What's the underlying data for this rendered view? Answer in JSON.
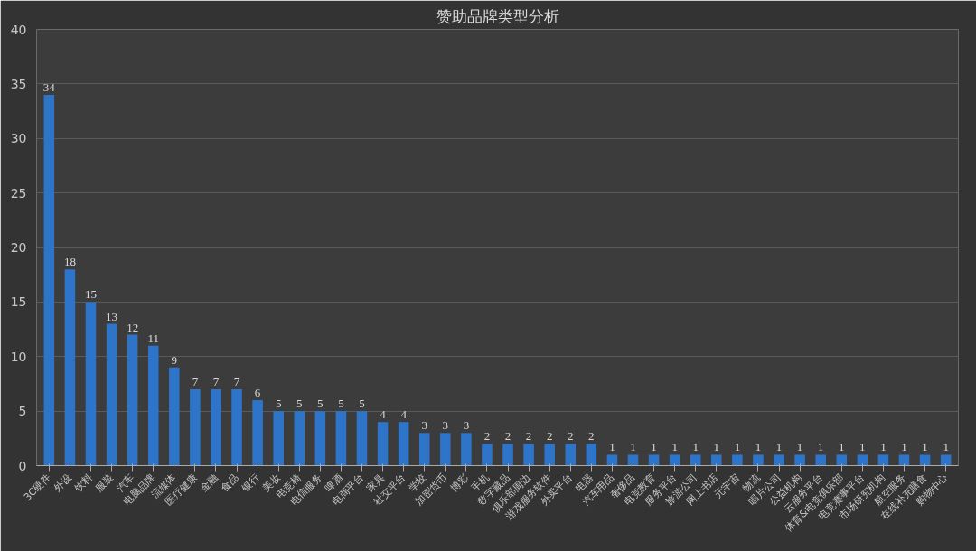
{
  "chart_data": {
    "type": "bar",
    "title": "赞助品牌类型分析",
    "categories": [
      "3C硬件",
      "外设",
      "饮料",
      "服装",
      "汽车",
      "电脑品牌",
      "流媒体",
      "医疗健康",
      "金融",
      "食品",
      "银行",
      "美妆",
      "电竞椅",
      "电信服务",
      "啤酒",
      "电商平台",
      "家具",
      "社交平台",
      "学校",
      "加密货币",
      "博彩",
      "手机",
      "数字藏品",
      "俱乐部周边",
      "游戏服务软件",
      "外卖平台",
      "电器",
      "汽车用品",
      "奢侈品",
      "电竞教育",
      "服务平台",
      "旅游公司",
      "网上书店",
      "元宇宙",
      "物流",
      "唱片公司",
      "公益机构",
      "云服务平台",
      "体育&电竞俱乐部",
      "电竞赛事平台",
      "市场研究机构",
      "航空服务",
      "在线补充膳食",
      "购物中心"
    ],
    "values": [
      34,
      18,
      15,
      13,
      12,
      11,
      9,
      7,
      7,
      7,
      6,
      5,
      5,
      5,
      5,
      5,
      4,
      4,
      3,
      3,
      3,
      2,
      2,
      2,
      2,
      2,
      2,
      1,
      1,
      1,
      1,
      1,
      1,
      1,
      1,
      1,
      1,
      1,
      1,
      1,
      1,
      1,
      1,
      1
    ],
    "color": "#2e75c9",
    "ylim": [
      0,
      40
    ],
    "yticks": [
      0,
      5,
      10,
      15,
      20,
      25,
      30,
      35,
      40
    ],
    "grid": "y",
    "data_labels": true
  }
}
